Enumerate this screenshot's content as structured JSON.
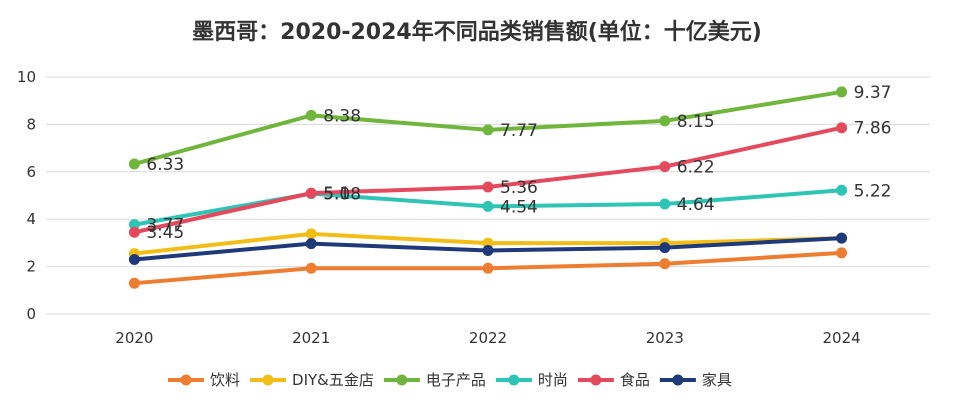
{
  "chart_data": {
    "type": "line",
    "title": "墨西哥：2020-2024年不同品类销售额(单位：十亿美元)",
    "xlabel": "",
    "ylabel": "",
    "categories": [
      "2020",
      "2021",
      "2022",
      "2023",
      "2024"
    ],
    "ylim": [
      0,
      10
    ],
    "yticks": [
      "0",
      "2",
      "4",
      "6",
      "8",
      "10"
    ],
    "grid": true,
    "legend_position": "bottom",
    "series": [
      {
        "name": "饮料",
        "color": "#ED7D31",
        "values": [
          1.3,
          1.93,
          1.93,
          2.12,
          2.58
        ],
        "labels": []
      },
      {
        "name": "DIY&五金店",
        "color": "#F2BE16",
        "values": [
          2.55,
          3.38,
          2.99,
          2.99,
          3.2
        ],
        "labels": []
      },
      {
        "name": "电子产品",
        "color": "#70B63D",
        "values": [
          6.33,
          8.38,
          7.77,
          8.15,
          9.37
        ],
        "labels": [
          "6.33",
          "8.38",
          "7.77",
          "8.15",
          "9.37"
        ]
      },
      {
        "name": "时尚",
        "color": "#2EC4B6",
        "values": [
          3.77,
          5.08,
          4.54,
          4.64,
          5.22
        ],
        "labels": [
          "3.77",
          "5.08",
          "4.54",
          "4.64",
          "5.22"
        ]
      },
      {
        "name": "食品",
        "color": "#E5495E",
        "values": [
          3.45,
          5.1,
          5.36,
          6.22,
          7.86
        ],
        "labels": [
          "3.45",
          "5.1",
          "5.36",
          "6.22",
          "7.86"
        ]
      },
      {
        "name": "家具",
        "color": "#1F3A7A",
        "values": [
          2.3,
          2.97,
          2.68,
          2.8,
          3.2
        ],
        "labels": []
      }
    ]
  }
}
